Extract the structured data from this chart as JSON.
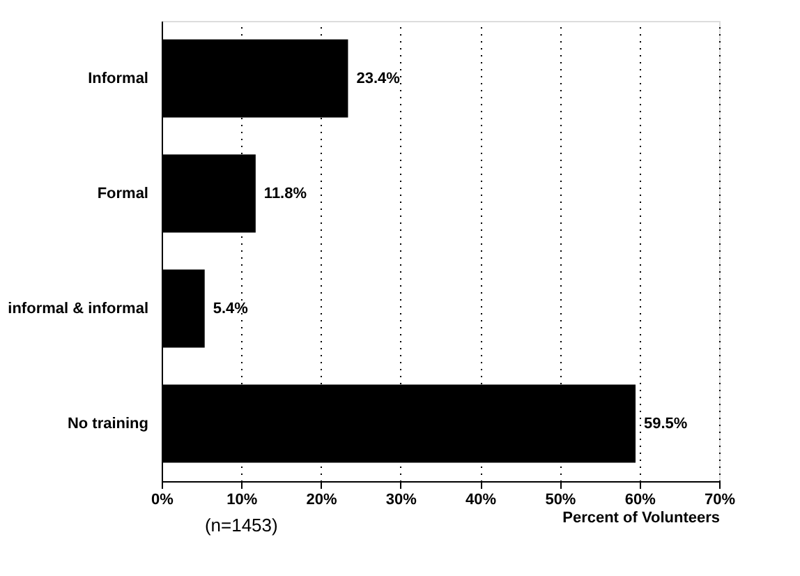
{
  "chart_data": {
    "type": "bar",
    "orientation": "horizontal",
    "xlabel": "Percent of Volunteers",
    "categories": [
      "Informal",
      "Formal",
      "informal & informal",
      "No training"
    ],
    "values": [
      23.4,
      11.8,
      5.4,
      59.5
    ],
    "value_labels": [
      "23.4%",
      "11.8%",
      "5.4%",
      "59.5%"
    ],
    "color": "#000000",
    "xlim": [
      0,
      70
    ],
    "xticks": [
      {
        "value": 0,
        "label": "0%"
      },
      {
        "value": 10,
        "label": "10%"
      },
      {
        "value": 20,
        "label": "20%"
      },
      {
        "value": 30,
        "label": "30%"
      },
      {
        "value": 40,
        "label": "40%"
      },
      {
        "value": 50,
        "label": "50%"
      },
      {
        "value": 60,
        "label": "60%"
      },
      {
        "value": 70,
        "label": "70%"
      }
    ],
    "grid": "x",
    "annotations": [
      "(n=1453)"
    ]
  }
}
